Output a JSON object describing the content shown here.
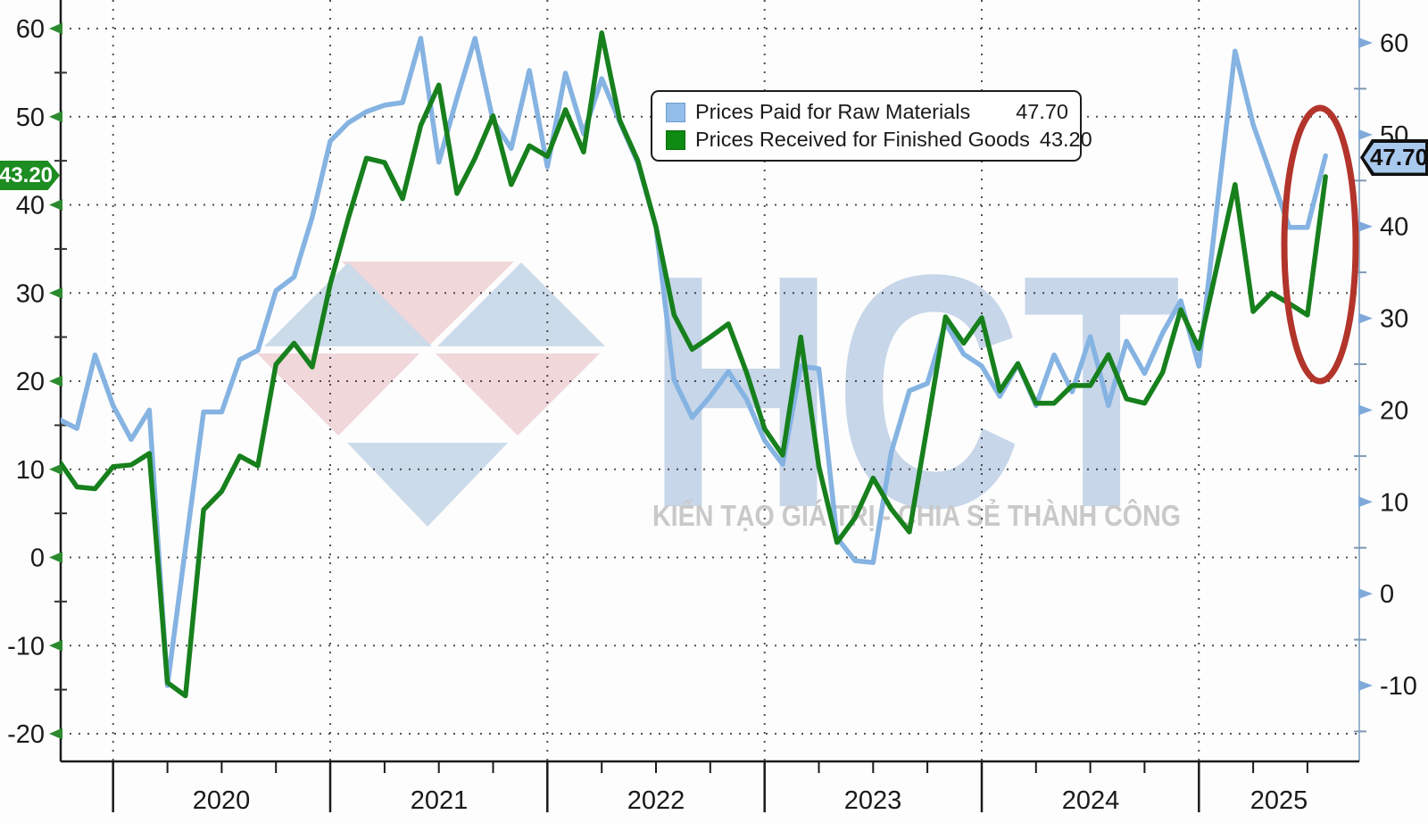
{
  "watermark": {
    "text": "HCT",
    "slogan": "KIẾN TẠO GIÁ TRỊ - CHIA SẺ THÀNH CÔNG",
    "text_color": "#c7d6e9",
    "slogan_color": "#c9c9c9",
    "logo_red": "#f0d7da",
    "logo_blue": "#ccdbea"
  },
  "legend": {
    "items": [
      {
        "label": "Prices Paid for Raw Materials",
        "value": "47.70"
      },
      {
        "label": "Prices Received for Finished Goods",
        "value": "43.20"
      }
    ]
  },
  "tags": {
    "left": {
      "value": "43.20"
    },
    "right": {
      "value": "47.70"
    }
  },
  "annotation": {
    "shape": "ellipse",
    "stroke": "#b2342b",
    "months": [
      "2025-04",
      "2025-08"
    ],
    "value_range": [
      20,
      51
    ],
    "note": "red ellipse highlighting the recent 2025 rebound of both series"
  },
  "colors": {
    "grid": "#222222",
    "axis": "#1a1a1a",
    "right_axis_line": "#9ab3cb",
    "left_arrow": "#2c8a2e",
    "right_arrow": "#7fa9d8",
    "tick_label": "#1a1a1a"
  },
  "chart_data": {
    "type": "line",
    "title": "",
    "grid": "dotted",
    "legend_position": "top-center",
    "x_months": [
      "2019-10",
      "2019-11",
      "2019-12",
      "2020-01",
      "2020-02",
      "2020-03",
      "2020-04",
      "2020-05",
      "2020-06",
      "2020-07",
      "2020-08",
      "2020-09",
      "2020-10",
      "2020-11",
      "2020-12",
      "2021-01",
      "2021-02",
      "2021-03",
      "2021-04",
      "2021-05",
      "2021-06",
      "2021-07",
      "2021-08",
      "2021-09",
      "2021-10",
      "2021-11",
      "2021-12",
      "2022-01",
      "2022-02",
      "2022-03",
      "2022-04",
      "2022-05",
      "2022-06",
      "2022-07",
      "2022-08",
      "2022-09",
      "2022-10",
      "2022-11",
      "2022-12",
      "2023-01",
      "2023-02",
      "2023-03",
      "2023-04",
      "2023-05",
      "2023-06",
      "2023-07",
      "2023-08",
      "2023-09",
      "2023-10",
      "2023-11",
      "2023-12",
      "2024-01",
      "2024-02",
      "2024-03",
      "2024-04",
      "2024-05",
      "2024-06",
      "2024-07",
      "2024-08",
      "2024-09",
      "2024-10",
      "2024-11",
      "2024-12",
      "2025-01",
      "2025-02",
      "2025-03",
      "2025-04",
      "2025-05",
      "2025-06",
      "2025-07",
      "2025-08"
    ],
    "series": [
      {
        "name": "Prices Paid for Raw Materials",
        "axis": "right",
        "color": "#85b3e2",
        "current": 47.7,
        "values": [
          19.0,
          18.0,
          26.0,
          20.5,
          16.8,
          20.0,
          -10.0,
          5.0,
          19.8,
          19.8,
          25.5,
          26.5,
          33.0,
          34.5,
          41.0,
          49.3,
          51.3,
          52.5,
          53.2,
          53.5,
          60.5,
          47.0,
          54.0,
          60.5,
          51.5,
          48.5,
          57.0,
          46.5,
          56.7,
          50.1,
          56.1,
          51.4,
          46.9,
          40.0,
          23.3,
          19.2,
          21.5,
          24.2,
          21.2,
          16.7,
          14.1,
          24.8,
          24.5,
          6.1,
          3.6,
          3.4,
          15.4,
          22.1,
          22.9,
          29.5,
          26.1,
          24.8,
          21.5,
          25.0,
          20.5,
          26.0,
          22.0,
          28.0,
          20.5,
          27.5,
          24.0,
          28.4,
          31.9,
          24.8,
          42.0,
          59.1,
          51.1,
          45.5,
          39.9,
          39.9,
          47.7
        ]
      },
      {
        "name": "Prices Received for Finished Goods",
        "axis": "left",
        "color": "#17801d",
        "current": 43.2,
        "values": [
          11.0,
          8.0,
          7.8,
          10.3,
          10.5,
          11.8,
          -14.2,
          -15.7,
          5.4,
          7.5,
          11.5,
          10.4,
          21.9,
          24.3,
          21.6,
          31.0,
          38.5,
          45.3,
          44.8,
          40.7,
          49.0,
          53.6,
          41.3,
          45.3,
          50.1,
          42.3,
          46.7,
          45.5,
          50.8,
          46.0,
          59.5,
          49.6,
          45.0,
          37.5,
          27.5,
          23.6,
          25.0,
          26.5,
          21.0,
          14.6,
          11.6,
          25.0,
          10.3,
          1.7,
          4.5,
          9.0,
          5.5,
          2.9,
          15.0,
          27.3,
          24.3,
          27.2,
          18.9,
          22.0,
          17.5,
          17.5,
          19.5,
          19.5,
          23.0,
          18.0,
          17.5,
          21.0,
          28.1,
          23.7,
          33.0,
          42.3,
          27.9,
          30.0,
          28.8,
          27.5,
          43.2
        ]
      }
    ],
    "left_axis": {
      "series": "Prices Received for Finished Goods",
      "ticks": [
        60,
        50,
        40,
        30,
        20,
        10,
        0,
        -10,
        -20
      ],
      "minor_ticks": [
        55,
        45,
        35,
        25,
        15,
        5,
        -5,
        -15
      ]
    },
    "right_axis": {
      "series": "Prices Paid for Raw Materials",
      "ticks": [
        60,
        50,
        40,
        30,
        20,
        10,
        0,
        -10
      ],
      "minor_ticks": [
        55,
        45,
        35,
        25,
        15,
        5,
        -5,
        -15
      ]
    },
    "x_axis": {
      "year_labels": [
        "2020",
        "2021",
        "2022",
        "2023",
        "2024",
        "2025"
      ]
    }
  }
}
